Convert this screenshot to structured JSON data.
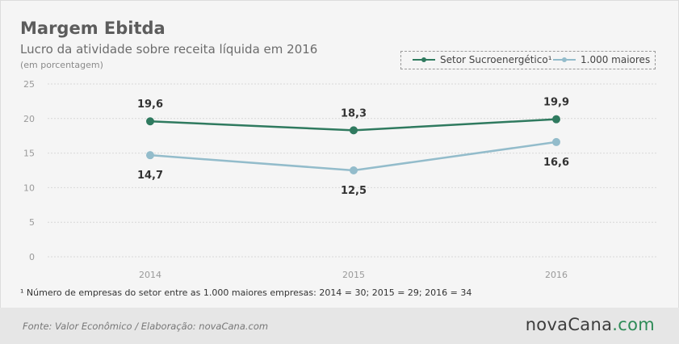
{
  "header": {
    "title": "Margem Ebitda",
    "subtitle": "Lucro da atividade sobre receita líquida em 2016",
    "unit_note": "(em porcentagem)"
  },
  "legend": [
    {
      "label": "Setor Sucroenergético¹",
      "color": "#2f7a5f"
    },
    {
      "label": "1.000 maiores",
      "color": "#93bccb"
    }
  ],
  "chart_data": {
    "type": "line",
    "categories": [
      "2014",
      "2015",
      "2016"
    ],
    "ylim": [
      0,
      25
    ],
    "yticks": [
      "0",
      "5",
      "10",
      "15",
      "20",
      "25"
    ],
    "grid": true,
    "legend_position": "top-right",
    "series": [
      {
        "name": "Setor Sucroenergético¹",
        "values": [
          19.6,
          18.3,
          19.9
        ],
        "labels": [
          "19,6",
          "18,3",
          "19,9"
        ],
        "color": "#2f7a5f",
        "label_position": "above"
      },
      {
        "name": "1.000 maiores",
        "values": [
          14.7,
          12.5,
          16.6
        ],
        "labels": [
          "14,7",
          "12,5",
          "16,6"
        ],
        "color": "#93bccb",
        "label_position": "below"
      }
    ]
  },
  "footnote": "¹ Número de empresas do setor entre as 1.000 maiores empresas: 2014 = 30; 2015 = 29; 2016 = 34",
  "footer": {
    "source": "Fonte: Valor Econômico / Elaboração: novaCana.com",
    "brand_main": "novaCana",
    "brand_tld": ".com"
  }
}
